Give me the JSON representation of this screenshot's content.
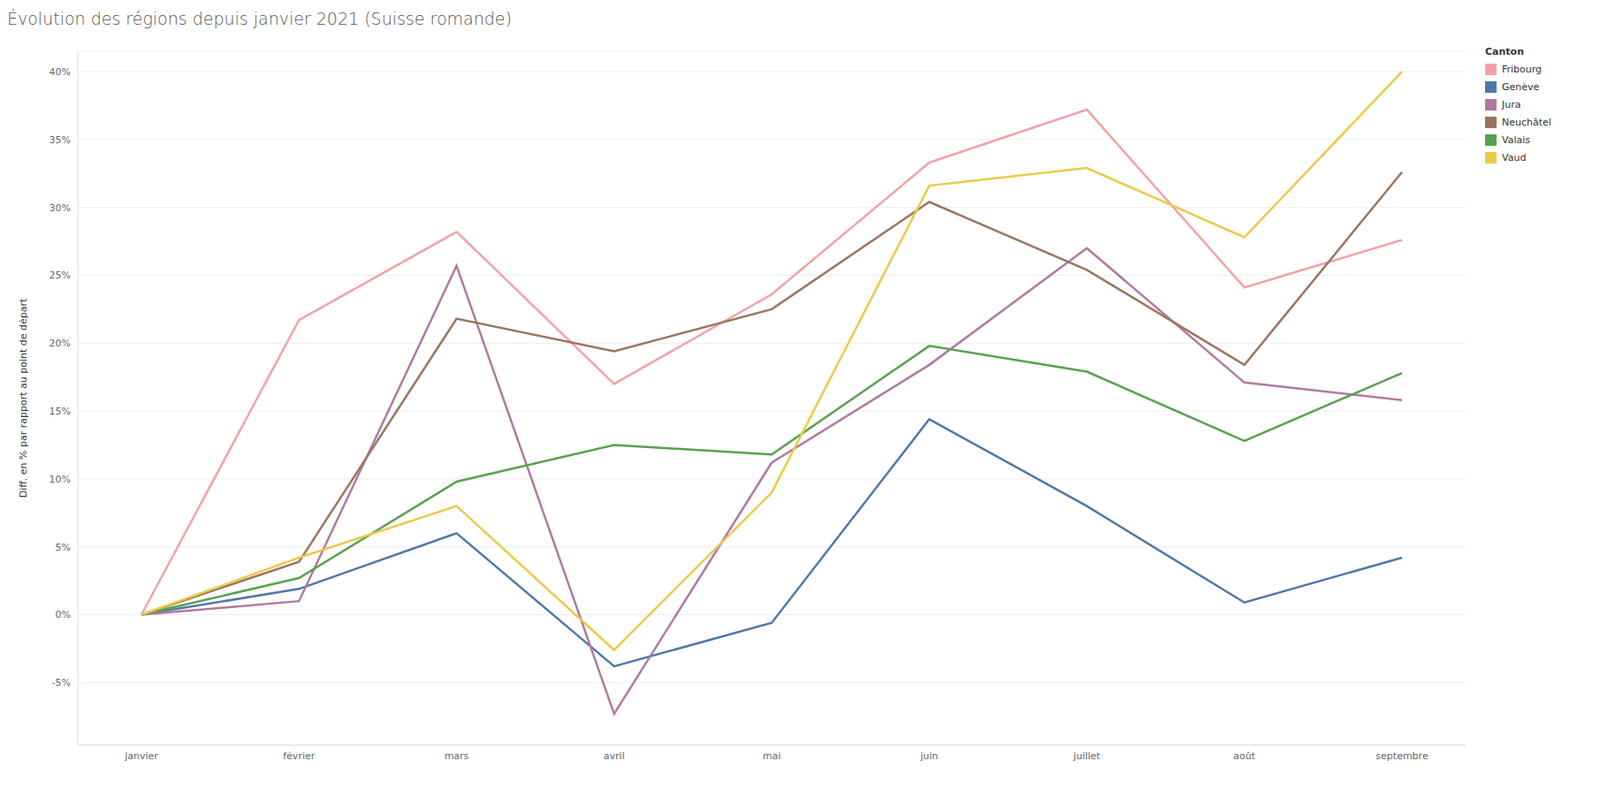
{
  "chart_data": {
    "type": "line",
    "title": "Évolution des régions depuis janvier 2021 (Suisse romande)",
    "y_label": "Diff. en % par rapport au point de départ",
    "legend_title": "Canton",
    "legend": "top-right",
    "grid": true,
    "categories": [
      "janvier",
      "février",
      "mars",
      "avril",
      "mai",
      "juin",
      "juillet",
      "août",
      "septembre"
    ],
    "ylim": [
      -9.6,
      41.5
    ],
    "yticks": [
      {
        "value": -5,
        "label": "-5%"
      },
      {
        "value": 0,
        "label": "0%"
      },
      {
        "value": 5,
        "label": "5%"
      },
      {
        "value": 10,
        "label": "10%"
      },
      {
        "value": 15,
        "label": "15%"
      },
      {
        "value": 20,
        "label": "20%"
      },
      {
        "value": 25,
        "label": "25%"
      },
      {
        "value": 30,
        "label": "30%"
      },
      {
        "value": 35,
        "label": "35%"
      },
      {
        "value": 40,
        "label": "40%"
      }
    ],
    "series": [
      {
        "name": "Fribourg",
        "color": "#f1a3a8",
        "values": [
          0,
          21.7,
          28.2,
          17.0,
          23.6,
          33.3,
          37.2,
          24.1,
          27.6
        ]
      },
      {
        "name": "Genève",
        "color": "#4e79a7",
        "values": [
          0,
          1.9,
          6.0,
          -3.8,
          -0.6,
          14.4,
          8.0,
          0.9,
          4.2
        ]
      },
      {
        "name": "Jura",
        "color": "#b07aa1",
        "values": [
          0,
          1.0,
          25.7,
          -7.3,
          11.2,
          18.4,
          27.0,
          17.1,
          15.8
        ]
      },
      {
        "name": "Neuchâtel",
        "color": "#9c755f",
        "values": [
          0,
          3.9,
          21.8,
          19.4,
          22.5,
          30.4,
          25.4,
          18.4,
          32.6
        ]
      },
      {
        "name": "Valais",
        "color": "#59a14f",
        "values": [
          0,
          2.7,
          9.8,
          12.5,
          11.8,
          19.8,
          17.9,
          12.8,
          17.8
        ]
      },
      {
        "name": "Vaud",
        "color": "#edc948",
        "values": [
          0,
          4.2,
          8.0,
          -2.6,
          9.0,
          31.6,
          32.9,
          27.8,
          40.0
        ]
      }
    ]
  }
}
